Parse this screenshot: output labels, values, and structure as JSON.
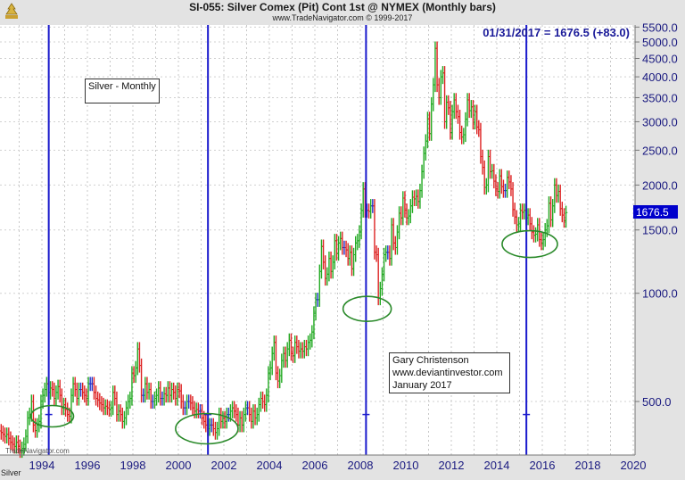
{
  "header": {
    "title": "SI-055:  Silver Comex (Pit) Cont 1st @ NYMEX  (Monthly bars)",
    "subtitle": "www.TradeNavigator.com © 1999-2017",
    "logo_icon": "trade-navigator-logo"
  },
  "readout": "01/31/2017 = 1676.5 (+83.0)",
  "annotations": {
    "series_label": "Silver - Monthly",
    "author_lines": [
      "Gary Christenson",
      "www.deviantinvestor.com",
      "January 2017"
    ],
    "watermark": "TradeNavigator.com",
    "symbol_label": "Silver"
  },
  "colors": {
    "up": "#22aa22",
    "down": "#dd2222",
    "cycle_line": "#1a1acc",
    "circle": "#2a8a2a",
    "price_box": "#0000cc",
    "axis_text": "#1a1a80"
  },
  "chart_data": {
    "type": "ohlc-bar",
    "title": "SI-055: Silver Comex (Pit) Cont 1st @ NYMEX (Monthly bars)",
    "yscale": "log",
    "ylim": [
      340,
      5600
    ],
    "xlim": [
      1992.15,
      2020.1
    ],
    "yticks": [
      500,
      1000,
      1500,
      2000,
      2500,
      3000,
      3500,
      4000,
      4500,
      5000,
      5500
    ],
    "ytick_labels": [
      "500.0",
      "1000.0",
      "1500.0",
      "2000.0",
      "2500.0",
      "3000.0",
      "3500.0",
      "4000.0",
      "4500.0",
      "5000.0",
      "5500.0"
    ],
    "xticks": [
      1994,
      1996,
      1998,
      2000,
      2002,
      2004,
      2006,
      2008,
      2010,
      2012,
      2014,
      2016,
      2018,
      2020
    ],
    "xtick_labels": [
      "1994",
      "1996",
      "1998",
      "2000",
      "2002",
      "2004",
      "2006",
      "2008",
      "2010",
      "2012",
      "2014",
      "2016",
      "2018",
      "2020"
    ],
    "last_price": 1676.5,
    "last_price_label": "1676.5",
    "start": "1992-03",
    "monthly_close": [
      410,
      405,
      400,
      405,
      395,
      385,
      380,
      375,
      385,
      375,
      365,
      370,
      380,
      400,
      450,
      460,
      500,
      430,
      415,
      430,
      440,
      500,
      520,
      540,
      560,
      530,
      545,
      540,
      510,
      530,
      550,
      520,
      480,
      490,
      475,
      460,
      455,
      520,
      560,
      540,
      510,
      540,
      540,
      530,
      520,
      510,
      560,
      560,
      560,
      530,
      510,
      505,
      495,
      490,
      480,
      485,
      480,
      475,
      480,
      530,
      510,
      460,
      470,
      460,
      440,
      450,
      480,
      500,
      510,
      600,
      590,
      620,
      700,
      630,
      520,
      520,
      560,
      530,
      540,
      500,
      500,
      510,
      520,
      545,
      510,
      510,
      525,
      520,
      545,
      520,
      540,
      530,
      510,
      540,
      535,
      500,
      480,
      480,
      500,
      500,
      495,
      480,
      470,
      475,
      470,
      470,
      450,
      440,
      430,
      420,
      430,
      430,
      420,
      410,
      420,
      460,
      440,
      450,
      440,
      460,
      460,
      470,
      480,
      470,
      460,
      430,
      450,
      430,
      460,
      480,
      480,
      460,
      440,
      470,
      450,
      460,
      490,
      510,
      500,
      490,
      520,
      600,
      620,
      680,
      730,
      600,
      570,
      590,
      650,
      680,
      650,
      700,
      740,
      680,
      670,
      730,
      710,
      690,
      700,
      690,
      710,
      700,
      730,
      740,
      780,
      880,
      960,
      960,
      1150,
      1350,
      1220,
      1100,
      1130,
      1250,
      1150,
      1220,
      1400,
      1290,
      1380,
      1420,
      1340,
      1340,
      1320,
      1250,
      1300,
      1170,
      1280,
      1380,
      1400,
      1480,
      1700,
      1950,
      1700,
      1700,
      1690,
      1750,
      1750,
      1300,
      1280,
      970,
      1030,
      1130,
      1280,
      1300,
      1300,
      1250,
      1550,
      1380,
      1340,
      1480,
      1670,
      1620,
      1840,
      1700,
      1620,
      1640,
      1750,
      1850,
      1830,
      1860,
      1800,
      1930,
      2180,
      2450,
      2650,
      3060,
      2780,
      3360,
      3800,
      4800,
      3800,
      3500,
      4000,
      4100,
      3000,
      3400,
      3280,
      2800,
      3200,
      3450,
      3200,
      3100,
      2800,
      2720,
      2760,
      3050,
      3450,
      3220,
      3300,
      2990,
      3200,
      2900,
      2850,
      2400,
      2240,
      1970,
      2000,
      2400,
      2180,
      2190,
      2050,
      1950,
      1920,
      2120,
      1980,
      1930,
      1930,
      2100,
      2040,
      1950,
      1710,
      1630,
      1550,
      1560,
      1700,
      1680,
      1700,
      1620,
      1650,
      1560,
      1480,
      1450,
      1460,
      1550,
      1410,
      1380,
      1410,
      1500,
      1540,
      1780,
      1600,
      1750,
      2000,
      1870,
      1920,
      1720,
      1650,
      1593.5,
      1676.5
    ],
    "cycle_lines": [
      1994.3,
      2001.3,
      2008.25,
      2015.3
    ],
    "cycle_marker_price": 460,
    "circled_lows": [
      {
        "year": 1994.45,
        "price": 455
      },
      {
        "year": 2001.25,
        "price": 420
      },
      {
        "year": 2008.3,
        "price": 905
      },
      {
        "year": 2015.45,
        "price": 1370
      }
    ]
  }
}
